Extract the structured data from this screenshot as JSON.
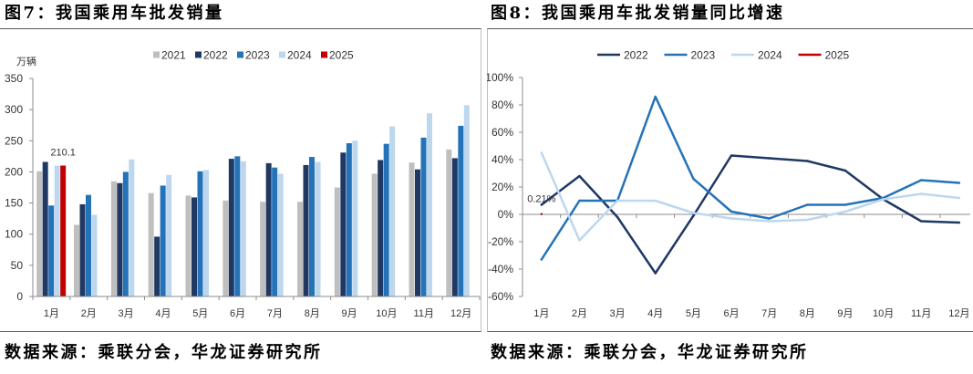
{
  "chart_data": [
    {
      "type": "bar",
      "title": "图7：我国乘用车批发销量",
      "source": "数据来源：乘联分会，华龙证券研究所",
      "ylabel": "万辆",
      "ylim": [
        0,
        350
      ],
      "yticks": [
        0,
        50,
        100,
        150,
        200,
        250,
        300,
        350
      ],
      "grid": false,
      "legend": "top",
      "categories": [
        "1月",
        "2月",
        "3月",
        "4月",
        "5月",
        "6月",
        "7月",
        "8月",
        "9月",
        "10月",
        "11月",
        "12月"
      ],
      "series": [
        {
          "name": "2021",
          "color": "#BFBFBF",
          "values": [
            201,
            115,
            185,
            166,
            162,
            154,
            152,
            152,
            175,
            197,
            215,
            236
          ]
        },
        {
          "name": "2022",
          "color": "#1F3864",
          "values": [
            216,
            148,
            182,
            96,
            159,
            221,
            214,
            211,
            231,
            219,
            204,
            222
          ]
        },
        {
          "name": "2023",
          "color": "#2472B8",
          "values": [
            146,
            163,
            200,
            178,
            201,
            225,
            207,
            224,
            246,
            245,
            255,
            274
          ]
        },
        {
          "name": "2024",
          "color": "#BDD7EE",
          "values": [
            210,
            131,
            220,
            195,
            203,
            217,
            197,
            216,
            250,
            273,
            294,
            307
          ]
        },
        {
          "name": "2025",
          "color": "#C00000",
          "values": [
            210.1,
            null,
            null,
            null,
            null,
            null,
            null,
            null,
            null,
            null,
            null,
            null
          ]
        }
      ],
      "data_labels": [
        {
          "series": "2025",
          "category": "1月",
          "text": "210.1"
        }
      ]
    },
    {
      "type": "line",
      "title": "图8：我国乘用车批发销量同比增速",
      "source": "数据来源：乘联分会，华龙证券研究所",
      "ylim": [
        -60,
        100
      ],
      "yticks": [
        -60,
        -40,
        -20,
        0,
        20,
        40,
        60,
        80,
        100
      ],
      "ytick_labels": [
        "-60%",
        "-40%",
        "-20%",
        "0%",
        "20%",
        "40%",
        "60%",
        "80%",
        "100%"
      ],
      "grid": false,
      "legend": "top",
      "categories": [
        "1月",
        "2月",
        "3月",
        "4月",
        "5月",
        "6月",
        "7月",
        "8月",
        "9月",
        "10月",
        "11月",
        "12月"
      ],
      "series": [
        {
          "name": "2022",
          "color": "#1F3864",
          "values": [
            7,
            28,
            -2,
            -43,
            -1,
            43,
            41,
            39,
            32,
            11,
            -5,
            -6
          ]
        },
        {
          "name": "2023",
          "color": "#2472B8",
          "values": [
            -33,
            10,
            10,
            86,
            26,
            2,
            -3,
            7,
            7,
            12,
            25,
            23
          ]
        },
        {
          "name": "2024",
          "color": "#BDD7EE",
          "values": [
            45,
            -19,
            10,
            10,
            1,
            -3,
            -5,
            -4,
            2,
            11,
            15,
            12
          ]
        },
        {
          "name": "2025",
          "color": "#C00000",
          "values": [
            0.21,
            null,
            null,
            null,
            null,
            null,
            null,
            null,
            null,
            null,
            null,
            null
          ]
        }
      ],
      "data_labels": [
        {
          "series": "2025",
          "category": "1月",
          "text": "0.21%"
        }
      ]
    }
  ]
}
